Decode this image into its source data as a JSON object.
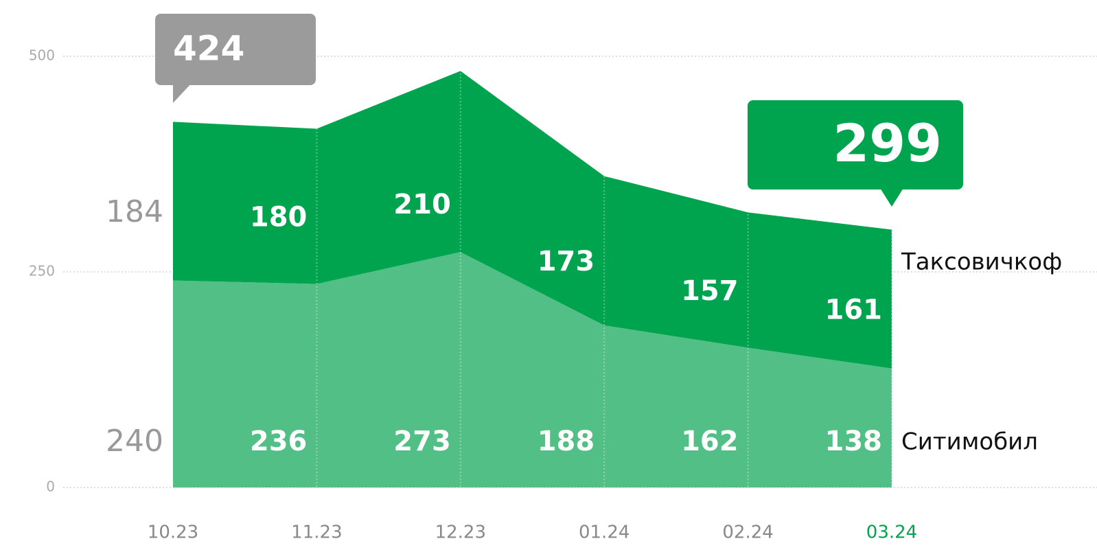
{
  "chart_data": {
    "type": "stacked_area",
    "categories": [
      "10.23",
      "11.23",
      "12.23",
      "01.24",
      "02.24",
      "03.24"
    ],
    "series": [
      {
        "name": "Ситимобил",
        "color": "#52bf86",
        "values": [
          240,
          236,
          273,
          188,
          162,
          138
        ]
      },
      {
        "name": "Таксовичкоф",
        "color": "#00a44f",
        "values": [
          184,
          180,
          210,
          173,
          157,
          161
        ]
      }
    ],
    "callouts": [
      {
        "value": 424,
        "color": "#9b9b9b"
      },
      {
        "value": 299,
        "color": "#00a44f"
      }
    ],
    "highlight_index": 5,
    "ylim": [
      0,
      500
    ],
    "yticks": [
      0,
      250,
      500
    ],
    "grid": true
  }
}
